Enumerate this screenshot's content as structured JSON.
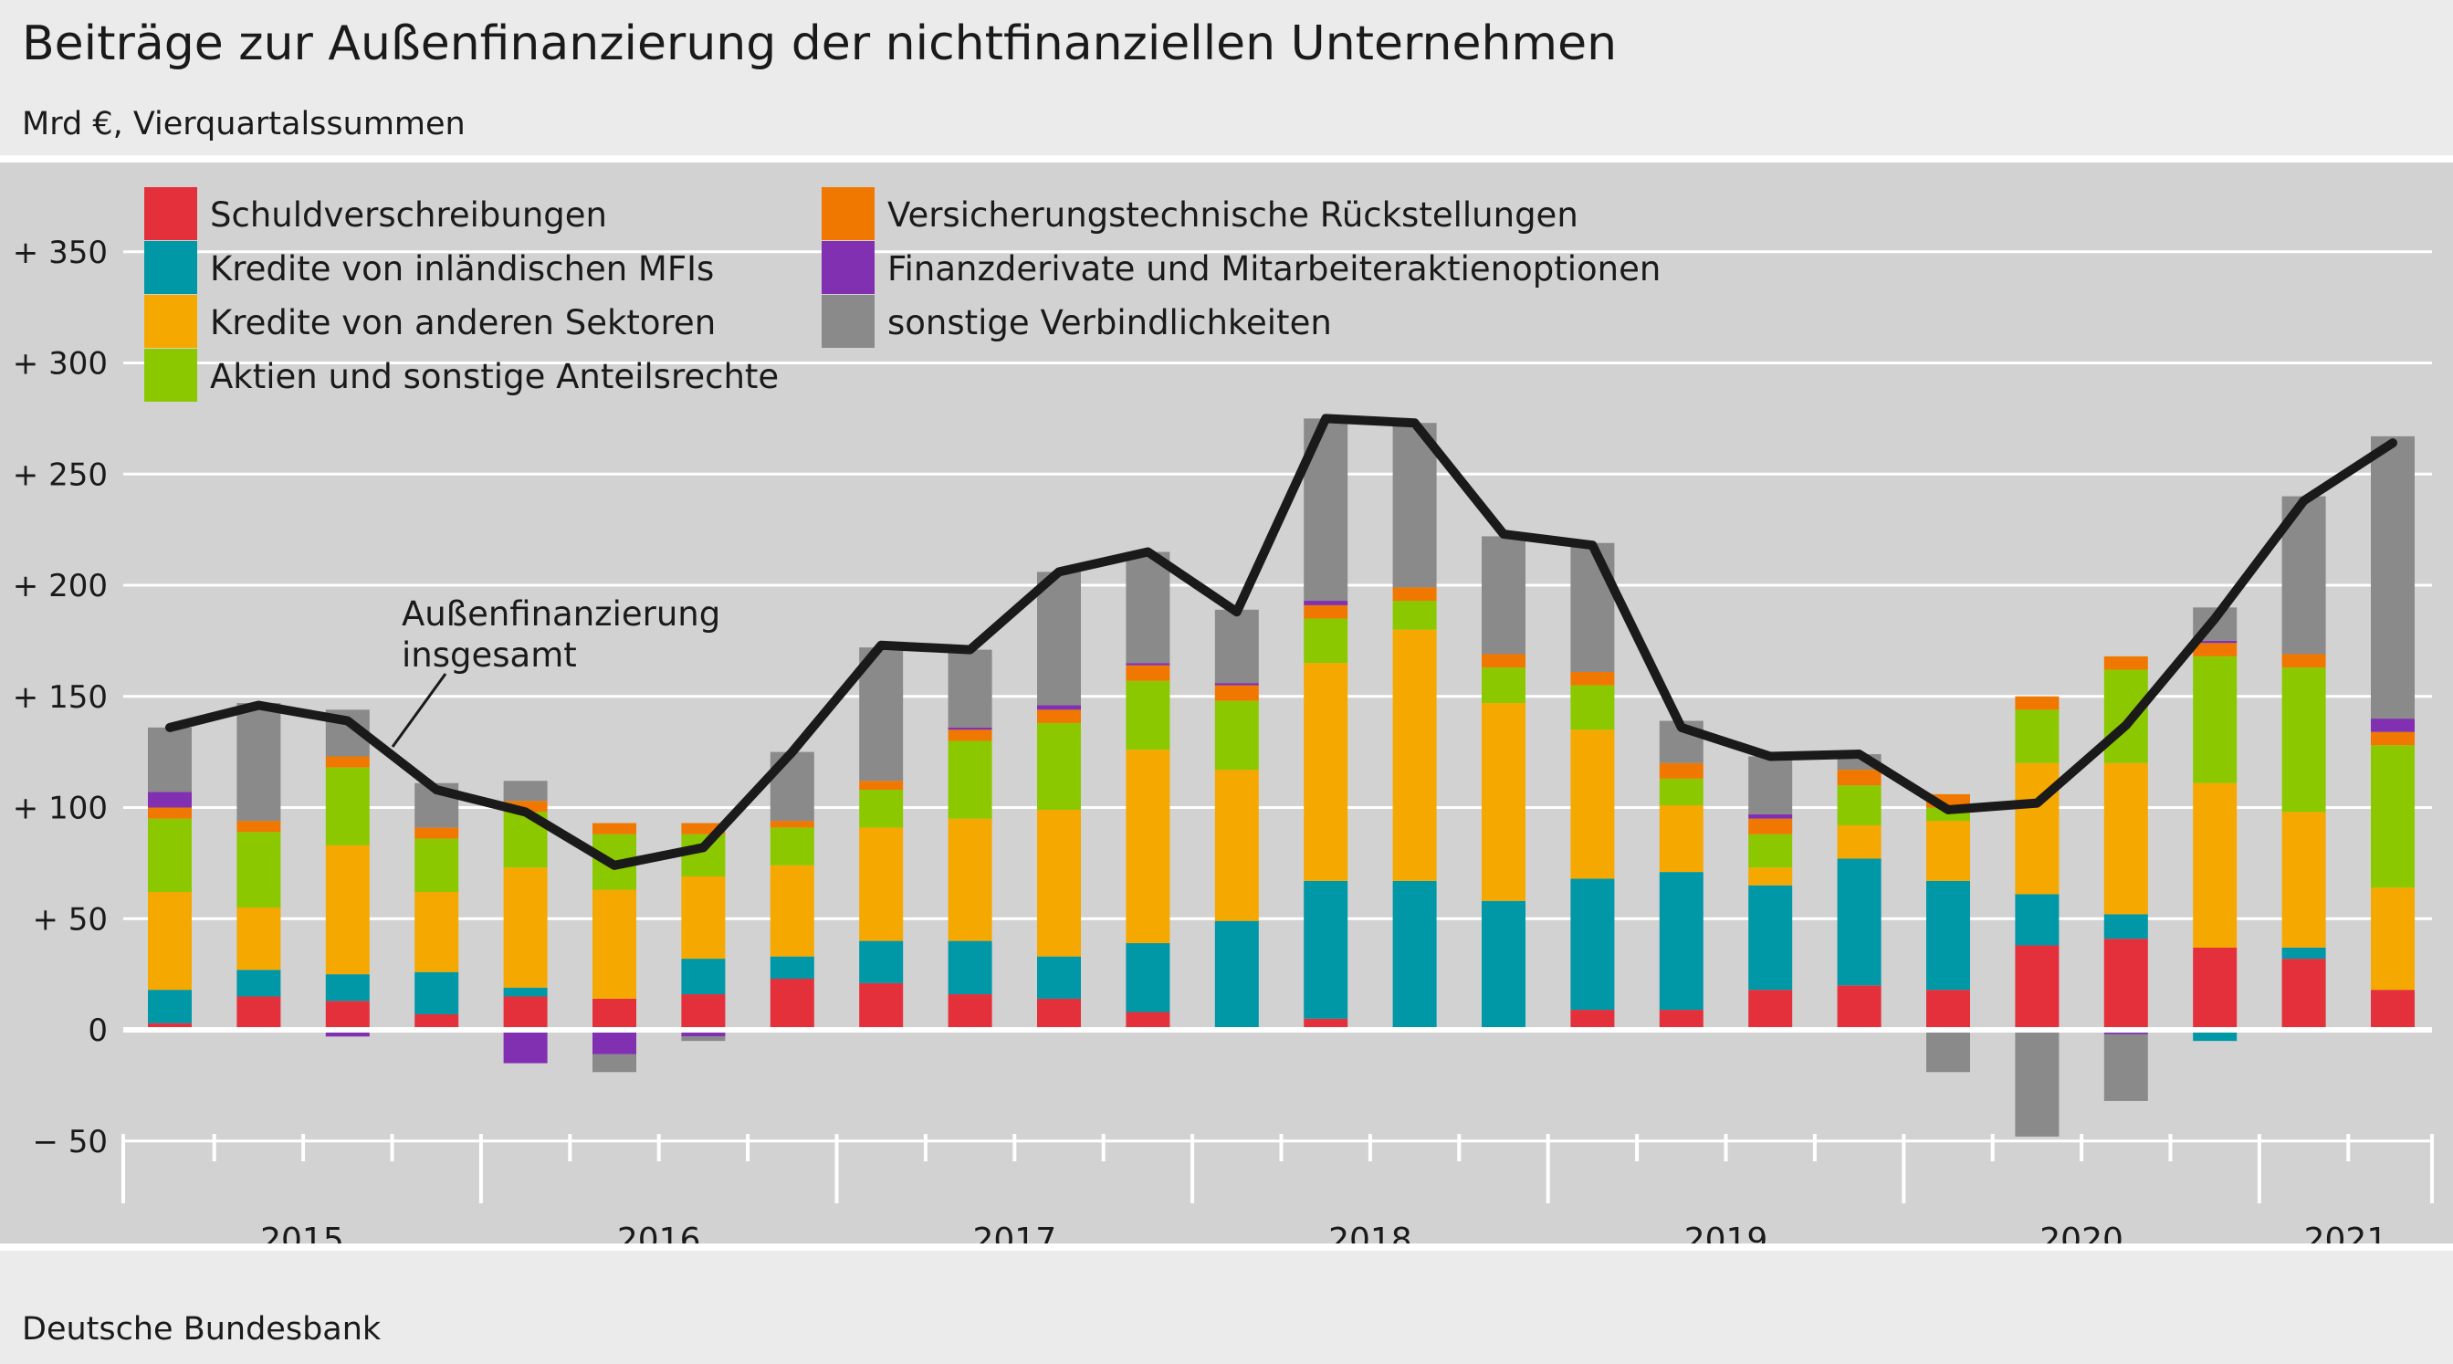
{
  "chart_data": {
    "type": "bar",
    "stacked": true,
    "title": "Beiträge zur Außenfinanzierung der nichtfinanziellen Unternehmen",
    "subtitle": "Mrd €, Vierquartalssummen",
    "source": "Deutsche Bundesbank",
    "ylim": [
      -50,
      375
    ],
    "yticks": [
      {
        "value": 350,
        "label": "+ 350"
      },
      {
        "value": 300,
        "label": "+ 300"
      },
      {
        "value": 250,
        "label": "+ 250"
      },
      {
        "value": 200,
        "label": "+ 200"
      },
      {
        "value": 150,
        "label": "+ 150"
      },
      {
        "value": 100,
        "label": "+ 100"
      },
      {
        "value": 50,
        "label": "+   50"
      },
      {
        "value": 0,
        "label": "0"
      },
      {
        "value": -50,
        "label": "−   50"
      }
    ],
    "grid": true,
    "legend_position": "top-left",
    "quarters": [
      "2015 Q1",
      "2015 Q2",
      "2015 Q3",
      "2015 Q4",
      "2016 Q1",
      "2016 Q2",
      "2016 Q3",
      "2016 Q4",
      "2017 Q1",
      "2017 Q2",
      "2017 Q3",
      "2017 Q4",
      "2018 Q1",
      "2018 Q2",
      "2018 Q3",
      "2018 Q4",
      "2019 Q1",
      "2019 Q2",
      "2019 Q3",
      "2019 Q4",
      "2020 Q1",
      "2020 Q2",
      "2020 Q3",
      "2020 Q4",
      "2021 Q1",
      "2021 Q2"
    ],
    "year_groups": [
      {
        "label": "2015",
        "count": 4
      },
      {
        "label": "2016",
        "count": 4
      },
      {
        "label": "2017",
        "count": 4
      },
      {
        "label": "2018",
        "count": 4
      },
      {
        "label": "2019",
        "count": 4
      },
      {
        "label": "2020",
        "count": 4
      },
      {
        "label": "2021",
        "count": 2
      }
    ],
    "series": [
      {
        "name": "Schuldverschreibungen",
        "color": "#e3303b",
        "values": [
          3,
          15,
          13,
          7,
          15,
          14,
          16,
          23,
          21,
          16,
          14,
          8,
          0,
          5,
          1,
          0,
          9,
          9,
          18,
          20,
          18,
          38,
          41,
          37,
          32,
          18
        ]
      },
      {
        "name": "Kredite von inländischen MFIs",
        "color": "#0097a7",
        "values": [
          15,
          12,
          12,
          19,
          4,
          0,
          16,
          10,
          19,
          24,
          19,
          31,
          49,
          62,
          66,
          58,
          59,
          62,
          47,
          57,
          49,
          23,
          11,
          -5,
          5,
          0
        ]
      },
      {
        "name": "Kredite von anderen Sektoren",
        "color": "#f5a800",
        "values": [
          44,
          28,
          58,
          36,
          54,
          49,
          37,
          41,
          51,
          55,
          66,
          87,
          68,
          98,
          113,
          89,
          67,
          30,
          8,
          15,
          27,
          59,
          68,
          74,
          61,
          46
        ]
      },
      {
        "name": "Aktien und sonstige Anteilsrechte",
        "color": "#8cc800",
        "values": [
          33,
          34,
          35,
          24,
          25,
          25,
          19,
          17,
          17,
          35,
          39,
          31,
          31,
          20,
          13,
          16,
          20,
          12,
          15,
          18,
          6,
          24,
          42,
          57,
          65,
          64
        ]
      },
      {
        "name": "Versicherungstechnische Rückstellungen",
        "color": "#f07800",
        "values": [
          5,
          5,
          5,
          5,
          5,
          5,
          5,
          3,
          4,
          5,
          6,
          7,
          7,
          6,
          6,
          6,
          6,
          7,
          7,
          7,
          6,
          6,
          6,
          6,
          6,
          6
        ]
      },
      {
        "name": "Finanzderivate und Mitarbeiteraktienoptionen",
        "color": "#8030b0",
        "values": [
          7,
          0,
          -3,
          -1,
          -15,
          -11,
          -3,
          0,
          0,
          1,
          2,
          1,
          1,
          2,
          0,
          0,
          -1,
          -1,
          2,
          0,
          0,
          0,
          -2,
          1,
          0,
          6
        ]
      },
      {
        "name": "sonstige Verbindlichkeiten",
        "color": "#8a8a8a",
        "values": [
          29,
          53,
          21,
          20,
          9,
          -8,
          -2,
          31,
          60,
          35,
          60,
          50,
          33,
          82,
          74,
          53,
          58,
          19,
          26,
          7,
          -19,
          -48,
          -30,
          15,
          71,
          127
        ]
      }
    ],
    "line": {
      "name": "Außenfinanzierung insgesamt",
      "color": "#1a1a1a",
      "values": [
        136,
        146,
        139,
        108,
        98,
        74,
        82,
        125,
        173,
        171,
        206,
        215,
        188,
        275,
        273,
        223,
        218,
        136,
        123,
        124,
        99,
        102,
        137,
        185,
        238,
        264
      ]
    },
    "annotation": {
      "lines": [
        "Außenfinanzierung",
        "insgesamt"
      ]
    }
  }
}
